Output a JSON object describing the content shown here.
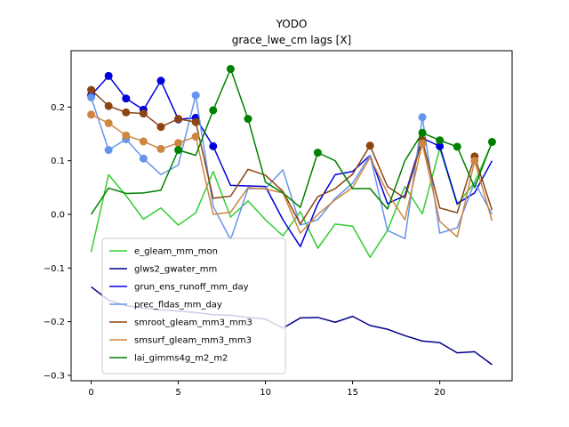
{
  "chart_data": {
    "type": "line",
    "title": "YODO",
    "subtitle": "grace_lwe_cm lags [X]",
    "xlabel": "",
    "ylabel": "",
    "xlim": [
      -1.15,
      24.15
    ],
    "ylim": [
      -0.31,
      0.305
    ],
    "xticks": [
      0,
      5,
      10,
      15,
      20
    ],
    "yticks": [
      -0.3,
      -0.2,
      -0.1,
      0.0,
      0.1,
      0.2
    ],
    "ytick_labels": [
      "−0.3",
      "−0.2",
      "−0.1",
      "0.0",
      "0.1",
      "0.2"
    ],
    "legend_position": "lower-left",
    "grid": false,
    "x": [
      0,
      1,
      2,
      3,
      4,
      5,
      6,
      7,
      8,
      9,
      10,
      11,
      12,
      13,
      14,
      15,
      16,
      17,
      18,
      19,
      20,
      21,
      22,
      23
    ],
    "series": [
      {
        "name": "e_gleam_mm_mon",
        "color": "#32cd32",
        "values": [
          -0.07,
          0.074,
          0.035,
          -0.009,
          0.012,
          -0.02,
          0.003,
          0.08,
          -0.005,
          0.025,
          -0.01,
          -0.04,
          0.005,
          -0.063,
          -0.018,
          -0.022,
          -0.08,
          -0.03,
          0.052,
          0.001,
          0.123,
          0.018,
          0.06,
          0.133
        ],
        "markers": []
      },
      {
        "name": "glws2_gwater_mm",
        "color": "#00008b",
        "values": [
          -0.135,
          -0.16,
          -0.17,
          -0.175,
          -0.178,
          -0.18,
          -0.183,
          -0.187,
          -0.188,
          -0.192,
          -0.195,
          -0.212,
          -0.193,
          -0.192,
          -0.201,
          -0.19,
          -0.207,
          -0.214,
          -0.226,
          -0.236,
          -0.239,
          -0.258,
          -0.256,
          -0.28
        ],
        "markers": []
      },
      {
        "name": "grun_ens_runoff_mm_day",
        "color": "#0000dd",
        "values": [
          0.222,
          0.258,
          0.216,
          0.195,
          0.249,
          0.177,
          0.18,
          0.127,
          0.054,
          0.053,
          0.052,
          -0.01,
          -0.06,
          0.02,
          0.074,
          0.08,
          0.11,
          0.02,
          0.035,
          0.142,
          0.127,
          0.02,
          0.04,
          0.1
        ],
        "markers": [
          0,
          1,
          2,
          3,
          4,
          5,
          6,
          7,
          20
        ]
      },
      {
        "name": "prec_fldas_mm_day",
        "color": "#6495ed",
        "values": [
          0.218,
          0.12,
          0.14,
          0.104,
          0.074,
          0.092,
          0.222,
          0.015,
          -0.047,
          0.048,
          0.048,
          0.083,
          -0.02,
          -0.01,
          0.03,
          0.058,
          0.11,
          -0.03,
          -0.045,
          0.181,
          -0.035,
          -0.025,
          0.06,
          0.0
        ],
        "markers": [
          0,
          1,
          2,
          3,
          6,
          19
        ]
      },
      {
        "name": "smroot_gleam_mm3_mm3",
        "color": "#8b4513",
        "values": [
          0.232,
          0.202,
          0.19,
          0.188,
          0.163,
          0.178,
          0.172,
          0.03,
          0.034,
          0.084,
          0.073,
          0.043,
          -0.018,
          0.033,
          0.048,
          0.075,
          0.128,
          0.052,
          0.03,
          0.138,
          0.012,
          0.003,
          0.108,
          0.008
        ],
        "markers": [
          0,
          1,
          2,
          3,
          4,
          5,
          6,
          16,
          19,
          22
        ]
      },
      {
        "name": "smsurf_gleam_mm3_mm3",
        "color": "#cd853f",
        "values": [
          0.186,
          0.17,
          0.147,
          0.136,
          0.122,
          0.133,
          0.145,
          0.0,
          0.004,
          0.05,
          0.047,
          0.04,
          -0.035,
          0.0,
          0.027,
          0.05,
          0.106,
          0.04,
          -0.01,
          0.132,
          -0.013,
          -0.042,
          0.1,
          -0.012
        ],
        "markers": [
          0,
          1,
          2,
          3,
          4,
          5,
          6,
          19,
          22
        ]
      },
      {
        "name": "lai_gimms4g_m2_m2",
        "color": "#008000",
        "values": [
          0.0,
          0.049,
          0.039,
          0.04,
          0.045,
          0.12,
          0.11,
          0.194,
          0.271,
          0.178,
          0.06,
          0.04,
          0.013,
          0.115,
          0.1,
          0.048,
          0.048,
          0.01,
          0.1,
          0.152,
          0.138,
          0.126,
          0.05,
          0.135
        ],
        "markers": [
          5,
          7,
          8,
          9,
          13,
          19,
          20,
          21,
          23
        ]
      }
    ]
  }
}
